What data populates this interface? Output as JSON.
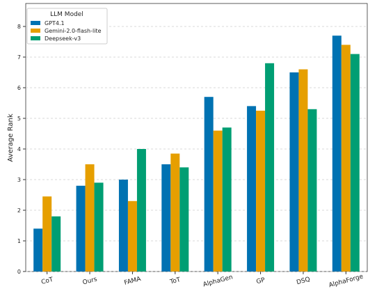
{
  "chart_data": {
    "type": "bar",
    "categories": [
      "CoT",
      "Ours",
      "FAMA",
      "ToT",
      "AlphaGen",
      "GP",
      "DSQ",
      "AlphaForge"
    ],
    "series": [
      {
        "name": "GPT4.1",
        "color": "#0072b2",
        "values": [
          1.4,
          2.8,
          3.0,
          3.5,
          5.7,
          5.4,
          6.5,
          7.7
        ]
      },
      {
        "name": "Gemini-2.0-flash-lite",
        "color": "#e69f00",
        "values": [
          2.45,
          3.5,
          2.3,
          3.85,
          4.6,
          5.25,
          6.6,
          7.4
        ]
      },
      {
        "name": "Deepseek-v3",
        "color": "#009e73",
        "values": [
          1.8,
          2.9,
          4.0,
          3.4,
          4.7,
          6.8,
          5.3,
          7.1
        ]
      }
    ],
    "ylabel": "Average Rank",
    "legend_title": "LLM Model",
    "legend": "upper left",
    "ylim": [
      0,
      8.75
    ],
    "yticks": [
      0,
      1,
      2,
      3,
      4,
      5,
      6,
      7,
      8
    ],
    "grid": true
  }
}
